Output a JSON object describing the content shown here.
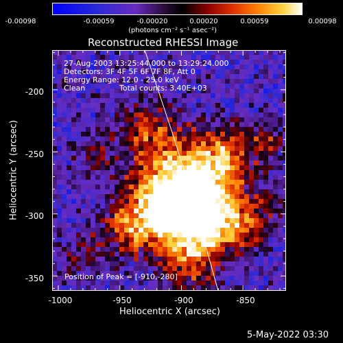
{
  "colorbar": {
    "tick_labels": [
      "-0.00098",
      "-0.00059",
      "-0.00020",
      "0.00020",
      "0.00059",
      "0.00098"
    ],
    "unit_label": "(photons cm⁻² s⁻¹ asec⁻²)",
    "range": [
      -0.00098,
      0.00098
    ]
  },
  "title": "Reconstructed RHESSI Image",
  "info": {
    "time_range": "27-Aug-2003 13:25:44.000 to 13:29:24.000",
    "detectors": "Detectors: 3F 4F 5F 6F 7F 8F, Att 0",
    "energy": "Energy Range: 12.0 - 25.0 keV",
    "method": "Clean",
    "counts": "Total counts: 3.40E+03"
  },
  "peak_label": "Position of Peak = [-910,-280]",
  "axes": {
    "xlabel": "Heliocentric X (arcsec)",
    "ylabel": "Heliocentric Y (arcsec)",
    "xticks": [
      "-1000",
      "-950",
      "-900",
      "-850"
    ],
    "yticks": [
      "-200",
      "-250",
      "-300",
      "-350"
    ],
    "xlim": [
      -1005,
      -815
    ],
    "ylim": [
      -362,
      -168
    ]
  },
  "footer_date": "5-May-2022 03:30"
}
